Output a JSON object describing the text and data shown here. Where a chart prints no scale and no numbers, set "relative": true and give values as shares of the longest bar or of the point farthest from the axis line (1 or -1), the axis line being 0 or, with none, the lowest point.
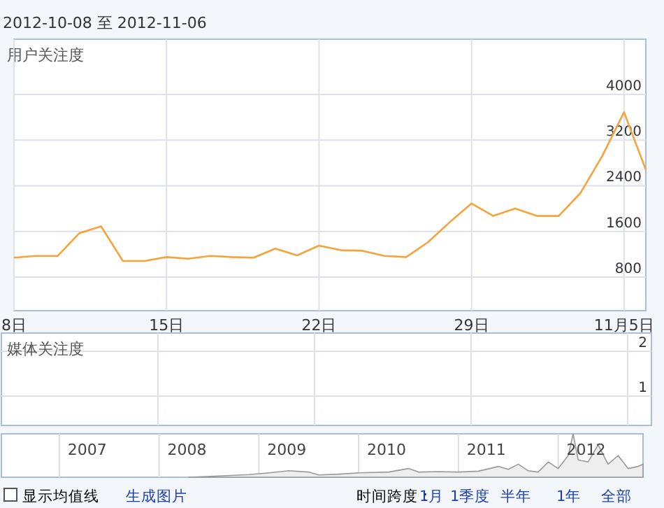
{
  "chart_data": [
    {
      "type": "line",
      "title": "2012-10-08 至 2012-11-06",
      "ylabel": "用户关注度",
      "x": [
        "2012-10-08",
        "2012-10-09",
        "2012-10-10",
        "2012-10-11",
        "2012-10-12",
        "2012-10-13",
        "2012-10-14",
        "2012-10-15",
        "2012-10-16",
        "2012-10-17",
        "2012-10-18",
        "2012-10-19",
        "2012-10-20",
        "2012-10-21",
        "2012-10-22",
        "2012-10-23",
        "2012-10-24",
        "2012-10-25",
        "2012-10-26",
        "2012-10-27",
        "2012-10-28",
        "2012-10-29",
        "2012-10-30",
        "2012-10-31",
        "2012-11-01",
        "2012-11-02",
        "2012-11-03",
        "2012-11-04",
        "2012-11-05",
        "2012-11-06"
      ],
      "series": [
        {
          "color": "#f5a33c",
          "values": [
            1140,
            1170,
            1170,
            1570,
            1690,
            1080,
            1080,
            1150,
            1120,
            1170,
            1150,
            1140,
            1300,
            1180,
            1350,
            1270,
            1260,
            1170,
            1150,
            1410,
            1760,
            2090,
            1870,
            2000,
            1870,
            1870,
            2270,
            2920,
            3690,
            2680
          ]
        }
      ],
      "xlim": [
        "2012-10-08",
        "2012-11-06"
      ],
      "xticks": [
        {
          "value": "2012-10-08",
          "label": "8日"
        },
        {
          "value": "2012-10-15",
          "label": "15日"
        },
        {
          "value": "2012-10-22",
          "label": "22日"
        },
        {
          "value": "2012-10-29",
          "label": "29日"
        },
        {
          "value": "2012-11-05",
          "label": "11月5日"
        }
      ],
      "ylim": [
        210,
        4970
      ],
      "yticks": [
        800,
        1600,
        2400,
        3200,
        4000
      ],
      "grid": true,
      "marker": "none",
      "line_style": "solid",
      "annotations": [
        "显示均值线",
        "生成图片",
        "时间跨度：",
        "1月",
        "1季度",
        "半年",
        "1年",
        "全部"
      ]
    },
    {
      "type": "other",
      "ylabel": "媒体关注度",
      "annotations": [
        "2",
        "1"
      ]
    },
    {
      "type": "area",
      "relative": true,
      "x": [
        2008.3,
        2008.6,
        2008.9,
        2009.1,
        2009.3,
        2009.5,
        2009.6,
        2009.8,
        2010.0,
        2010.3,
        2010.5,
        2010.6,
        2010.8,
        2011.0,
        2011.2,
        2011.4,
        2011.5,
        2011.6,
        2011.7,
        2011.8,
        2011.9,
        2012.0,
        2012.1,
        2012.15,
        2012.2,
        2012.3,
        2012.4,
        2012.5,
        2012.6,
        2012.7,
        2012.8,
        2012.85
      ],
      "grid": true,
      "series": [
        {
          "color": "#999999",
          "values": [
            0,
            0.03,
            0.06,
            0.1,
            0.15,
            0.12,
            0.05,
            0.07,
            0.1,
            0.12,
            0.2,
            0.12,
            0.13,
            0.12,
            0.14,
            0.25,
            0.18,
            0.3,
            0.15,
            0.12,
            0.35,
            0.2,
            0.5,
            1,
            0.4,
            0.35,
            0.75,
            0.3,
            0.5,
            0.2,
            0.25,
            0.3
          ]
        }
      ],
      "xlim": [
        2006.42,
        2012.85
      ],
      "xticks": [
        {
          "value": 2007,
          "label": null
        },
        {
          "value": 2007.28,
          "label": "2007"
        },
        {
          "value": 2008,
          "label": null
        },
        {
          "value": 2008.28,
          "label": "2008"
        },
        {
          "value": 2009,
          "label": null
        },
        {
          "value": 2009.28,
          "label": "2009"
        },
        {
          "value": 2010,
          "label": null
        },
        {
          "value": 2010.28,
          "label": "2010"
        },
        {
          "value": 2011,
          "label": null
        },
        {
          "value": 2011.28,
          "label": "2011"
        },
        {
          "value": 2012,
          "label": null
        },
        {
          "value": 2012.28,
          "label": "2012"
        }
      ]
    }
  ]
}
